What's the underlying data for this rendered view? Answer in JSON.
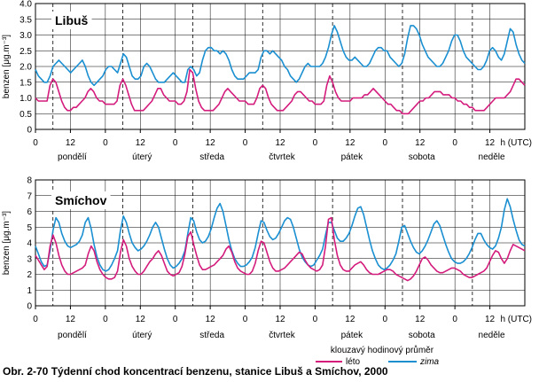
{
  "caption": "Obr. 2-70  Týdenní chod koncentrací benzenu, stanice Libuš a Smíchov, 2000",
  "legend": {
    "title": "klouzavý hodinový průměr",
    "items": [
      {
        "name": "léto",
        "color": "#d41c7d"
      },
      {
        "name": "zima",
        "color": "#1a8fd1"
      }
    ]
  },
  "chart_data": [
    {
      "type": "line",
      "title": "Libuš",
      "ylabel": "benzen [μg.m⁻³]",
      "ylim": [
        0,
        4.0
      ],
      "yticks": [
        "0",
        "0.5",
        "1.0",
        "1.5",
        "2.0",
        "2.5",
        "3.0",
        "3.5",
        "4.0"
      ],
      "x_unit_label": "h (UTC)",
      "x_tick_labels": [
        "0",
        "12",
        "0",
        "12",
        "0",
        "12",
        "0",
        "12",
        "0",
        "12",
        "0",
        "12",
        "0",
        "12"
      ],
      "days": [
        "pondělí",
        "úterý",
        "středa",
        "čtvrtek",
        "pátek",
        "sobota",
        "neděle"
      ],
      "x_range_hours": [
        0,
        168
      ],
      "grid": true,
      "series": [
        {
          "name": "léto",
          "values": [
            1.0,
            0.9,
            0.9,
            0.9,
            0.9,
            1.4,
            1.6,
            1.5,
            1.2,
            0.9,
            0.7,
            0.6,
            0.6,
            0.7,
            0.7,
            0.8,
            0.9,
            1.0,
            1.2,
            1.3,
            1.2,
            1.0,
            0.9,
            0.9,
            0.8,
            0.8,
            0.8,
            0.8,
            0.9,
            1.4,
            1.6,
            1.4,
            1.1,
            0.8,
            0.6,
            0.6,
            0.6,
            0.6,
            0.7,
            0.8,
            0.9,
            1.1,
            1.3,
            1.3,
            1.1,
            1.0,
            0.9,
            0.9,
            0.9,
            0.8,
            0.8,
            0.9,
            1.2,
            1.9,
            1.8,
            1.3,
            0.9,
            0.7,
            0.6,
            0.6,
            0.6,
            0.6,
            0.7,
            0.8,
            1.0,
            1.2,
            1.3,
            1.2,
            1.1,
            1.0,
            0.9,
            0.9,
            0.9,
            0.8,
            0.8,
            0.8,
            1.0,
            1.3,
            1.4,
            1.3,
            1.0,
            0.8,
            0.7,
            0.6,
            0.6,
            0.6,
            0.7,
            0.8,
            0.9,
            1.1,
            1.2,
            1.2,
            1.1,
            1.0,
            0.9,
            0.9,
            0.8,
            0.8,
            0.8,
            0.9,
            1.4,
            1.7,
            1.5,
            1.2,
            1.0,
            0.9,
            0.9,
            0.9,
            0.9,
            1.0,
            1.0,
            1.0,
            1.0,
            1.1,
            1.1,
            1.2,
            1.3,
            1.2,
            1.1,
            1.0,
            0.9,
            0.8,
            0.8,
            0.7,
            0.6,
            0.6,
            0.5,
            0.5,
            0.5,
            0.6,
            0.7,
            0.8,
            0.9,
            0.9,
            1.0,
            1.0,
            1.1,
            1.2,
            1.2,
            1.2,
            1.1,
            1.1,
            1.1,
            1.0,
            1.0,
            0.9,
            0.9,
            0.8,
            0.8,
            0.7,
            0.7,
            0.6,
            0.6,
            0.6,
            0.6,
            0.7,
            0.8,
            0.9,
            1.0,
            1.0,
            1.0,
            1.0,
            1.1,
            1.2,
            1.4,
            1.6,
            1.6,
            1.5,
            1.4
          ]
        },
        {
          "name": "zima",
          "values": [
            1.9,
            1.7,
            1.6,
            1.5,
            1.5,
            1.7,
            2.0,
            2.1,
            2.2,
            2.1,
            2.0,
            1.9,
            1.8,
            1.9,
            2.0,
            2.1,
            2.2,
            2.0,
            1.7,
            1.5,
            1.4,
            1.5,
            1.6,
            1.7,
            1.9,
            2.0,
            2.0,
            1.9,
            1.8,
            2.1,
            2.4,
            2.3,
            2.0,
            1.7,
            1.6,
            1.6,
            1.7,
            2.0,
            2.1,
            2.0,
            1.8,
            1.6,
            1.5,
            1.5,
            1.5,
            1.6,
            1.7,
            1.8,
            1.7,
            1.6,
            1.5,
            1.5,
            1.9,
            2.0,
            1.9,
            1.7,
            1.8,
            2.2,
            2.5,
            2.6,
            2.6,
            2.5,
            2.5,
            2.4,
            2.5,
            2.4,
            2.2,
            1.9,
            1.7,
            1.6,
            1.6,
            1.6,
            1.7,
            1.8,
            1.8,
            1.8,
            1.9,
            2.3,
            2.5,
            2.5,
            2.4,
            2.5,
            2.4,
            2.3,
            2.2,
            2.0,
            1.9,
            1.7,
            1.6,
            1.5,
            1.6,
            1.8,
            2.0,
            2.1,
            2.0,
            2.0,
            2.0,
            2.0,
            2.1,
            2.3,
            2.6,
            3.0,
            3.3,
            3.1,
            2.8,
            2.5,
            2.3,
            2.2,
            2.2,
            2.3,
            2.2,
            2.1,
            2.0,
            2.0,
            2.1,
            2.3,
            2.5,
            2.6,
            2.6,
            2.5,
            2.5,
            2.3,
            2.2,
            2.1,
            2.0,
            2.1,
            2.4,
            2.9,
            3.3,
            3.3,
            3.2,
            3.0,
            2.7,
            2.5,
            2.3,
            2.2,
            2.1,
            2.0,
            2.0,
            2.1,
            2.3,
            2.5,
            2.8,
            3.0,
            3.0,
            2.8,
            2.5,
            2.3,
            2.2,
            2.1,
            2.0,
            1.9,
            1.9,
            2.0,
            2.2,
            2.5,
            2.6,
            2.5,
            2.3,
            2.2,
            2.4,
            2.8,
            3.2,
            3.1,
            2.7,
            2.4,
            2.2,
            2.1
          ]
        }
      ]
    },
    {
      "type": "line",
      "title": "Smíchov",
      "ylabel": "benzen [μg.m⁻³]",
      "ylim": [
        0,
        8
      ],
      "yticks": [
        "0",
        "1",
        "2",
        "3",
        "4",
        "5",
        "6",
        "7",
        "8"
      ],
      "x_unit_label": "h (UTC)",
      "x_tick_labels": [
        "0",
        "12",
        "0",
        "12",
        "0",
        "12",
        "0",
        "12",
        "0",
        "12",
        "0",
        "12",
        "0",
        "12"
      ],
      "days": [
        "pondělí",
        "úterý",
        "středa",
        "čtvrtek",
        "pátek",
        "sobota",
        "neděle"
      ],
      "x_range_hours": [
        0,
        168
      ],
      "grid": true,
      "series": [
        {
          "name": "léto",
          "values": [
            3.2,
            2.9,
            2.6,
            2.3,
            2.5,
            3.8,
            4.5,
            4.0,
            3.2,
            2.6,
            2.2,
            2.0,
            2.0,
            2.1,
            2.2,
            2.3,
            2.4,
            2.6,
            3.3,
            3.8,
            3.5,
            2.8,
            2.3,
            2.0,
            1.8,
            1.7,
            1.7,
            1.8,
            2.2,
            3.4,
            4.2,
            3.8,
            3.0,
            2.5,
            2.2,
            2.0,
            2.0,
            2.2,
            2.5,
            2.8,
            3.0,
            3.3,
            3.5,
            3.2,
            2.7,
            2.2,
            2.0,
            1.9,
            2.0,
            2.1,
            2.5,
            3.3,
            4.4,
            4.7,
            3.9,
            3.2,
            2.6,
            2.3,
            2.3,
            2.4,
            2.5,
            2.6,
            2.8,
            3.0,
            3.2,
            3.6,
            3.8,
            3.4,
            2.8,
            2.4,
            2.2,
            2.1,
            2.0,
            2.0,
            2.2,
            2.7,
            3.5,
            4.1,
            4.0,
            3.4,
            2.8,
            2.4,
            2.2,
            2.2,
            2.3,
            2.4,
            2.6,
            2.8,
            3.0,
            3.2,
            3.4,
            3.3,
            2.9,
            2.6,
            2.4,
            2.3,
            2.2,
            2.3,
            2.6,
            3.8,
            5.5,
            5.6,
            4.2,
            3.2,
            2.6,
            2.3,
            2.2,
            2.2,
            2.4,
            2.6,
            2.7,
            2.8,
            2.6,
            2.3,
            2.1,
            2.0,
            2.0,
            2.0,
            2.1,
            2.2,
            2.3,
            2.3,
            2.2,
            2.0,
            1.9,
            1.8,
            1.7,
            1.6,
            1.7,
            1.9,
            2.2,
            2.6,
            3.0,
            3.1,
            2.9,
            2.6,
            2.4,
            2.2,
            2.1,
            2.1,
            2.2,
            2.3,
            2.4,
            2.4,
            2.3,
            2.2,
            2.0,
            1.9,
            1.8,
            1.8,
            1.9,
            2.0,
            2.1,
            2.2,
            2.4,
            2.8,
            3.2,
            3.5,
            3.4,
            3.0,
            2.7,
            3.0,
            3.5,
            3.9,
            3.8,
            3.7,
            3.6,
            3.5
          ]
        },
        {
          "name": "zima",
          "values": [
            3.8,
            3.3,
            2.8,
            2.5,
            2.6,
            3.5,
            4.8,
            5.6,
            5.3,
            4.6,
            4.1,
            3.8,
            3.7,
            3.8,
            3.9,
            4.1,
            4.5,
            5.3,
            5.6,
            4.9,
            3.9,
            3.1,
            2.6,
            2.3,
            2.2,
            2.3,
            2.6,
            3.0,
            3.5,
            4.8,
            5.7,
            5.3,
            4.6,
            4.0,
            3.7,
            3.5,
            3.6,
            3.8,
            4.1,
            4.5,
            5.0,
            5.3,
            5.0,
            4.3,
            3.6,
            3.0,
            2.6,
            2.4,
            2.5,
            2.7,
            3.0,
            3.5,
            4.6,
            5.6,
            5.4,
            4.7,
            4.2,
            4.0,
            4.1,
            4.4,
            4.9,
            5.6,
            6.2,
            6.5,
            6.0,
            5.1,
            4.2,
            3.5,
            3.0,
            2.7,
            2.5,
            2.5,
            2.6,
            2.8,
            3.1,
            3.7,
            4.6,
            5.4,
            5.3,
            4.8,
            4.4,
            4.2,
            4.3,
            4.6,
            5.0,
            5.4,
            5.6,
            5.5,
            5.0,
            4.3,
            3.6,
            3.1,
            2.8,
            2.6,
            2.5,
            2.6,
            2.9,
            3.2,
            3.6,
            4.5,
            5.3,
            5.3,
            4.8,
            4.3,
            4.1,
            4.1,
            4.3,
            4.6,
            5.1,
            5.7,
            6.2,
            6.3,
            5.8,
            5.0,
            4.2,
            3.5,
            3.0,
            2.6,
            2.4,
            2.3,
            2.4,
            2.6,
            2.9,
            3.3,
            4.1,
            5.0,
            5.1,
            4.6,
            4.1,
            3.7,
            3.4,
            3.3,
            3.5,
            3.8,
            4.2,
            4.7,
            5.2,
            5.4,
            5.1,
            4.5,
            3.9,
            3.4,
            3.0,
            2.8,
            2.7,
            2.7,
            2.8,
            3.0,
            3.3,
            3.7,
            4.2,
            4.6,
            4.6,
            4.2,
            3.9,
            3.7,
            3.6,
            3.8,
            4.3,
            5.0,
            6.1,
            6.8,
            6.3,
            5.5,
            4.8,
            4.2,
            3.9,
            3.8
          ]
        }
      ]
    }
  ]
}
